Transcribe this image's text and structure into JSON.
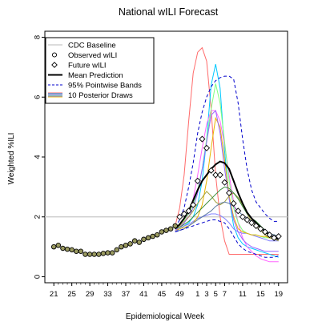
{
  "chart_data": {
    "type": "line",
    "title": "National wILI Forecast",
    "xlabel": "Epidemiological Week",
    "ylabel": "Weighted %ILI",
    "x_ticks": [
      "21",
      "25",
      "29",
      "33",
      "37",
      "41",
      "45",
      "49",
      "1",
      "3",
      "5",
      "7",
      "11",
      "15",
      "19"
    ],
    "x_tick_positions": [
      0,
      4,
      8,
      12,
      16,
      20,
      24,
      28,
      32,
      34,
      36,
      38,
      42,
      46,
      50
    ],
    "xlim": [
      -2,
      52
    ],
    "ylim": [
      -0.2,
      8.2
    ],
    "y_ticks": [
      0,
      2,
      4,
      6,
      8
    ],
    "grid": false,
    "legend_position": "top-left",
    "baseline": {
      "name": "CDC Baseline",
      "value": 2.0,
      "color": "#c8c8c8"
    },
    "legend": [
      {
        "label": "CDC Baseline",
        "style": "baseline"
      },
      {
        "label": "Observed wILI",
        "style": "circle"
      },
      {
        "label": "Future wILI",
        "style": "diamond"
      },
      {
        "label": "Mean Prediction",
        "style": "mean"
      },
      {
        "label": "95% Pointwise Bands",
        "style": "band"
      },
      {
        "label": "10 Posterior Draws",
        "style": "draws"
      }
    ],
    "observed": {
      "name": "Observed wILI",
      "x": [
        0,
        1,
        2,
        3,
        4,
        5,
        6,
        7,
        8,
        9,
        10,
        11,
        12,
        13,
        14,
        15,
        16,
        17,
        18,
        19,
        20,
        21,
        22,
        23,
        24,
        25,
        26,
        27
      ],
      "y": [
        1.0,
        1.05,
        0.95,
        0.92,
        0.9,
        0.85,
        0.85,
        0.75,
        0.75,
        0.75,
        0.75,
        0.78,
        0.8,
        0.8,
        0.9,
        1.0,
        1.05,
        1.1,
        1.2,
        1.15,
        1.25,
        1.3,
        1.35,
        1.4,
        1.5,
        1.55,
        1.6,
        1.7
      ]
    },
    "future": {
      "name": "Future wILI",
      "x": [
        28,
        29,
        30,
        31,
        32,
        33,
        34,
        35,
        36,
        37,
        38,
        39,
        40,
        41,
        42,
        43,
        44,
        45,
        46,
        47,
        48,
        49,
        50
      ],
      "y": [
        2.0,
        2.1,
        2.2,
        2.4,
        3.2,
        4.6,
        4.3,
        3.55,
        3.4,
        3.4,
        3.15,
        2.8,
        2.45,
        2.2,
        2.0,
        1.9,
        1.8,
        1.7,
        1.6,
        1.5,
        1.4,
        1.3,
        1.35
      ]
    },
    "mean_prediction": {
      "name": "Mean Prediction",
      "x": [
        27,
        28,
        29,
        30,
        31,
        32,
        33,
        34,
        35,
        36,
        37,
        38,
        39,
        40,
        41,
        42,
        43,
        44,
        45,
        46,
        47,
        48,
        49,
        50
      ],
      "y": [
        1.6,
        1.75,
        1.95,
        2.2,
        2.55,
        2.9,
        3.2,
        3.4,
        3.6,
        3.75,
        3.85,
        3.8,
        3.6,
        3.2,
        2.8,
        2.45,
        2.15,
        1.95,
        1.8,
        1.65,
        1.5,
        1.4,
        1.3,
        1.25
      ]
    },
    "band_upper": {
      "name": "95% Pointwise Bands",
      "x": [
        27,
        28,
        29,
        30,
        31,
        32,
        33,
        34,
        35,
        36,
        37,
        38,
        39,
        40,
        41,
        42,
        43,
        44,
        45,
        46,
        47,
        48,
        49,
        50
      ],
      "y": [
        1.65,
        1.9,
        2.3,
        3.0,
        3.8,
        4.8,
        5.5,
        6.0,
        6.35,
        6.55,
        6.65,
        6.7,
        6.7,
        6.6,
        5.8,
        4.6,
        3.6,
        2.9,
        2.5,
        2.3,
        2.1,
        1.95,
        1.85,
        1.85
      ]
    },
    "band_lower": {
      "name": "95% Pointwise Bands",
      "x": [
        27,
        28,
        29,
        30,
        31,
        32,
        33,
        34,
        35,
        36,
        37,
        38,
        39,
        40,
        41,
        42,
        43,
        44,
        45,
        46,
        47,
        48,
        49,
        50
      ],
      "y": [
        1.5,
        1.55,
        1.6,
        1.65,
        1.7,
        1.75,
        1.8,
        1.85,
        1.9,
        1.9,
        1.85,
        1.8,
        1.6,
        1.35,
        1.1,
        0.95,
        0.85,
        0.8,
        0.75,
        0.7,
        0.65,
        0.65,
        0.65,
        0.7
      ]
    },
    "draws": [
      {
        "color": "#ff6a6a",
        "x": [
          27,
          28,
          29,
          30,
          31,
          32,
          33,
          34,
          35,
          36,
          37,
          38,
          39,
          40,
          41,
          42,
          43,
          44,
          45,
          46,
          47,
          48,
          49,
          50
        ],
        "y": [
          1.7,
          2.3,
          3.4,
          5.2,
          6.8,
          7.5,
          7.65,
          7.2,
          5.6,
          3.4,
          2.0,
          1.2,
          0.75,
          0.75,
          0.75,
          0.75,
          0.75,
          0.75,
          0.75,
          0.75,
          0.75,
          0.75,
          0.75,
          0.75
        ]
      },
      {
        "color": "#00c8ff",
        "x": [
          27,
          28,
          29,
          30,
          31,
          32,
          33,
          34,
          35,
          36,
          37,
          38,
          39,
          40,
          41,
          42,
          43,
          44,
          45,
          46,
          47,
          48,
          49,
          50
        ],
        "y": [
          1.5,
          1.6,
          1.7,
          1.8,
          2.0,
          2.4,
          3.2,
          4.6,
          6.4,
          7.1,
          6.3,
          4.2,
          2.6,
          1.7,
          1.3,
          1.1,
          1.0,
          0.95,
          0.9,
          0.85,
          0.8,
          0.75,
          0.7,
          0.65
        ]
      },
      {
        "color": "#ff66ff",
        "x": [
          27,
          28,
          29,
          30,
          31,
          32,
          33,
          34,
          35,
          36,
          37,
          38,
          39,
          40,
          41,
          42,
          43,
          44,
          45,
          46,
          47,
          48,
          49,
          50
        ],
        "y": [
          1.55,
          1.65,
          1.8,
          2.1,
          2.6,
          3.4,
          4.3,
          5.1,
          5.55,
          5.55,
          5.2,
          4.4,
          3.4,
          2.5,
          1.8,
          1.3,
          1.0,
          0.85,
          0.7,
          0.6,
          0.55,
          0.5,
          0.5,
          0.5
        ]
      },
      {
        "color": "#7fff7f",
        "x": [
          27,
          28,
          29,
          30,
          31,
          32,
          33,
          34,
          35,
          36,
          37,
          38,
          39,
          40,
          41,
          42,
          43,
          44,
          45,
          46,
          47,
          48,
          49,
          50
        ],
        "y": [
          1.6,
          1.75,
          1.9,
          2.1,
          2.4,
          2.9,
          3.6,
          4.6,
          5.6,
          6.45,
          5.8,
          4.5,
          3.2,
          2.3,
          1.8,
          1.55,
          1.45,
          1.4,
          1.4,
          1.35,
          1.3,
          1.3,
          1.3,
          1.3
        ]
      },
      {
        "color": "#8080ff",
        "x": [
          27,
          28,
          29,
          30,
          31,
          32,
          33,
          34,
          35,
          36,
          37,
          38,
          39,
          40,
          41,
          42,
          43,
          44,
          45,
          46,
          47,
          48,
          49,
          50
        ],
        "y": [
          1.5,
          1.6,
          1.7,
          1.75,
          1.85,
          1.95,
          2.0,
          2.05,
          2.1,
          2.1,
          2.05,
          1.95,
          1.8,
          1.6,
          1.5,
          1.45,
          1.45,
          1.4,
          1.35,
          1.3,
          1.25,
          1.2,
          1.2,
          1.2
        ]
      },
      {
        "color": "#e8b400",
        "x": [
          27,
          28,
          29,
          30,
          31,
          32,
          33,
          34,
          35,
          36,
          37,
          38,
          39,
          40,
          41,
          42,
          43,
          44,
          45,
          46,
          47,
          48,
          49,
          50
        ],
        "y": [
          1.55,
          1.6,
          1.65,
          1.7,
          1.8,
          2.0,
          2.4,
          3.2,
          4.3,
          5.3,
          5.0,
          3.9,
          2.7,
          2.0,
          1.6,
          1.5,
          1.45,
          1.4,
          1.4,
          1.35,
          1.35,
          1.3,
          1.3,
          1.3
        ]
      },
      {
        "color": "#9966ff",
        "x": [
          27,
          28,
          29,
          30,
          31,
          32,
          33,
          34,
          35,
          36,
          37,
          38,
          39,
          40,
          41,
          42,
          43,
          44,
          45,
          46,
          47,
          48,
          49,
          50
        ],
        "y": [
          1.55,
          1.65,
          1.8,
          2.0,
          2.3,
          2.8,
          3.6,
          4.5,
          5.4,
          5.55,
          4.8,
          3.6,
          2.6,
          1.9,
          1.5,
          1.25,
          1.1,
          1.0,
          0.95,
          0.9,
          0.85,
          0.85,
          0.85,
          0.85
        ]
      },
      {
        "color": "#a3a340",
        "x": [
          27,
          28,
          29,
          30,
          31,
          32,
          33,
          34,
          35,
          36,
          37,
          38,
          39,
          40,
          41,
          42,
          43,
          44,
          45,
          46,
          47,
          48,
          49,
          50
        ],
        "y": [
          1.6,
          1.7,
          1.85,
          2.0,
          2.2,
          2.45,
          2.65,
          2.85,
          2.7,
          2.5,
          2.4,
          2.5,
          2.7,
          2.8,
          2.65,
          2.4,
          2.1,
          1.85,
          1.7,
          1.55,
          1.4,
          1.3,
          1.25,
          1.2
        ]
      },
      {
        "color": "#3c8c3c",
        "x": [
          27,
          28,
          29,
          30,
          31,
          32,
          33,
          34,
          35,
          36,
          37,
          38,
          39,
          40,
          41,
          42,
          43,
          44,
          45,
          46,
          47,
          48,
          49,
          50
        ],
        "y": [
          1.6,
          1.65,
          1.75,
          1.85,
          2.0,
          2.15,
          2.3,
          2.45,
          2.6,
          2.75,
          2.9,
          3.0,
          2.95,
          2.8,
          2.6,
          2.35,
          2.1,
          1.95,
          1.85,
          1.7,
          1.55,
          1.45,
          1.4,
          1.35
        ]
      },
      {
        "color": "#5a78a0",
        "x": [
          27,
          28,
          29,
          30,
          31,
          32,
          33,
          34,
          35,
          36,
          37,
          38,
          39,
          40,
          41,
          42,
          43,
          44,
          45,
          46,
          47,
          48,
          49,
          50
        ],
        "y": [
          1.5,
          1.55,
          1.6,
          1.7,
          1.8,
          1.9,
          2.0,
          2.1,
          2.2,
          2.35,
          2.45,
          2.5,
          2.45,
          2.35,
          2.2,
          2.05,
          1.95,
          1.85,
          1.75,
          1.65,
          1.55,
          1.45,
          1.4,
          1.35
        ]
      }
    ]
  }
}
